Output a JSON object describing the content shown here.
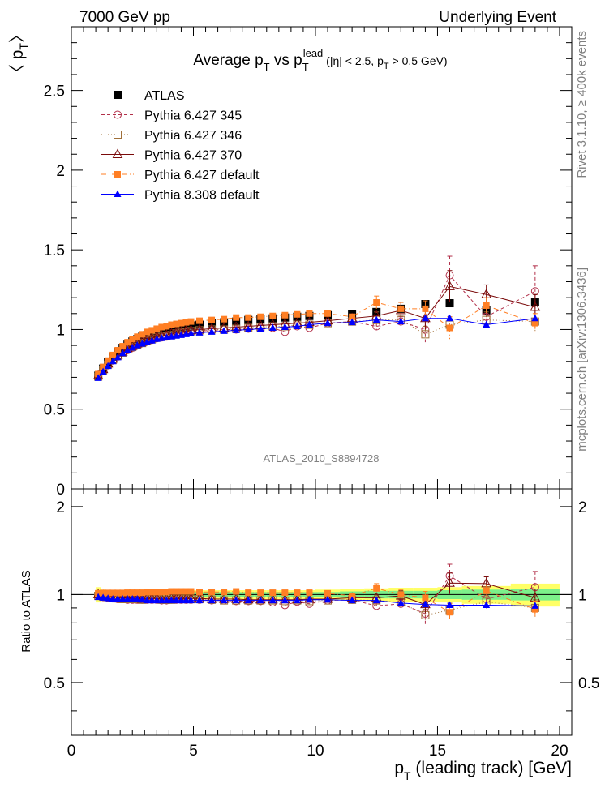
{
  "header": {
    "left": "7000 GeV pp",
    "right": "Underlying Event"
  },
  "side_labels": {
    "rivet": "Rivet 3.1.10, ≥ 400k events",
    "mcplots": "mcplots.cern.ch [arXiv:1306.3436]"
  },
  "watermark": "ATLAS_2010_S8894728",
  "colors": {
    "atlas": "#000000",
    "p345": "#b2304a",
    "p346": "#a0703a",
    "p370": "#7a0a0a",
    "p6def": "#ff7f24",
    "p8def": "#0000ff",
    "band_inner": "#7cf08a",
    "band_outer": "#ffff66"
  },
  "chart_data": [
    {
      "type": "scatter",
      "title": "Average p_T vs p_T^lead (|η| < 2.5, p_T > 0.5 GeV)",
      "title_parts": {
        "a": "Average p",
        "b": "T",
        "c": " vs p",
        "d": "T",
        "e": "lead",
        "f": " (|η| < 2.5, p",
        "g": "T",
        "h": " > 0.5 GeV)"
      },
      "ylabel_parts": {
        "open": "〈 p",
        "sub": "T",
        "close": "〉"
      },
      "xlabel_parts": {
        "main": "p",
        "sub": "T",
        "rest": " (leading track) [GeV]"
      },
      "xlim": [
        0,
        20.5
      ],
      "ylim": [
        0,
        2.9
      ],
      "x_ticks": [
        "0",
        "5",
        "10",
        "15",
        "20"
      ],
      "y_ticks": [
        "0",
        "0.5",
        "1",
        "1.5",
        "2",
        "2.5"
      ],
      "x": [
        1.1,
        1.3,
        1.5,
        1.7,
        1.9,
        2.1,
        2.3,
        2.5,
        2.7,
        2.9,
        3.1,
        3.3,
        3.5,
        3.7,
        3.9,
        4.1,
        4.3,
        4.5,
        4.7,
        4.9,
        5.25,
        5.75,
        6.25,
        6.75,
        7.25,
        7.75,
        8.25,
        8.75,
        9.25,
        9.75,
        10.5,
        11.5,
        12.5,
        13.5,
        14.5,
        15.5,
        17.0,
        19.0
      ],
      "series": [
        {
          "name": "ATLAS",
          "key": "atlas",
          "marker": "square-filled",
          "values": [
            0.71,
            0.755,
            0.795,
            0.83,
            0.86,
            0.885,
            0.905,
            0.925,
            0.94,
            0.955,
            0.965,
            0.975,
            0.985,
            0.995,
            1.0,
            1.005,
            1.01,
            1.015,
            1.02,
            1.025,
            1.03,
            1.04,
            1.045,
            1.05,
            1.06,
            1.065,
            1.07,
            1.075,
            1.08,
            1.085,
            1.09,
            1.095,
            1.11,
            1.13,
            1.16,
            1.165,
            1.12,
            1.17
          ]
        },
        {
          "name": "Pythia 6.427 345",
          "key": "p345",
          "marker": "circle-open",
          "values": [
            0.705,
            0.74,
            0.775,
            0.805,
            0.83,
            0.855,
            0.87,
            0.885,
            0.9,
            0.915,
            0.925,
            0.935,
            0.945,
            0.95,
            0.955,
            0.965,
            0.97,
            0.975,
            0.98,
            0.985,
            0.99,
            0.995,
            1.0,
            1.0,
            1.005,
            1.01,
            1.01,
            0.985,
            1.02,
            1.01,
            1.04,
            1.05,
            1.02,
            1.05,
            1.0,
            1.34,
            1.08,
            1.24
          ]
        },
        {
          "name": "Pythia 6.427 346",
          "key": "p346",
          "marker": "square-open",
          "values": [
            0.705,
            0.745,
            0.78,
            0.81,
            0.835,
            0.855,
            0.875,
            0.89,
            0.905,
            0.915,
            0.93,
            0.94,
            0.95,
            0.955,
            0.96,
            0.965,
            0.975,
            0.98,
            0.985,
            0.99,
            0.995,
            1.0,
            1.0,
            1.005,
            1.01,
            1.015,
            1.02,
            1.02,
            1.03,
            1.03,
            1.04,
            1.05,
            1.06,
            1.06,
            0.97,
            1.03,
            1.06,
            1.05
          ]
        },
        {
          "name": "Pythia 6.427 370",
          "key": "p370",
          "marker": "triangle-open",
          "values": [
            0.71,
            0.75,
            0.785,
            0.815,
            0.84,
            0.86,
            0.88,
            0.895,
            0.91,
            0.92,
            0.935,
            0.945,
            0.955,
            0.96,
            0.965,
            0.975,
            0.98,
            0.985,
            0.99,
            0.995,
            1.0,
            1.005,
            1.01,
            1.015,
            1.02,
            1.025,
            1.03,
            1.035,
            1.04,
            1.045,
            1.055,
            1.07,
            1.085,
            1.12,
            1.07,
            1.27,
            1.22,
            1.14
          ]
        },
        {
          "name": "Pythia 6.427 default",
          "key": "p6def",
          "marker": "square-small",
          "values": [
            0.72,
            0.765,
            0.805,
            0.84,
            0.87,
            0.895,
            0.92,
            0.94,
            0.955,
            0.97,
            0.985,
            0.995,
            1.005,
            1.015,
            1.02,
            1.03,
            1.035,
            1.04,
            1.045,
            1.05,
            1.055,
            1.06,
            1.065,
            1.075,
            1.075,
            1.08,
            1.085,
            1.09,
            1.095,
            1.1,
            1.1,
            1.08,
            1.17,
            1.13,
            1.13,
            1.01,
            1.15,
            1.04
          ]
        },
        {
          "name": "Pythia 8.308 default",
          "key": "p8def",
          "marker": "triangle-filled",
          "values": [
            0.695,
            0.735,
            0.77,
            0.8,
            0.825,
            0.85,
            0.87,
            0.885,
            0.9,
            0.91,
            0.92,
            0.93,
            0.94,
            0.945,
            0.95,
            0.955,
            0.96,
            0.965,
            0.97,
            0.975,
            0.98,
            0.985,
            0.99,
            0.995,
            1.0,
            1.005,
            1.01,
            1.015,
            1.02,
            1.03,
            1.04,
            1.045,
            1.06,
            1.05,
            1.07,
            1.07,
            1.03,
            1.07
          ]
        }
      ],
      "error_bars": {
        "p345": {
          "x": [
            12.5,
            13.5,
            14.5,
            15.5,
            17.0,
            19.0
          ],
          "half": [
            0.02,
            0.03,
            0.08,
            0.12,
            0.06,
            0.16
          ]
        },
        "p346": {
          "x": [
            12.5,
            13.5,
            14.5,
            15.5,
            17.0,
            19.0
          ],
          "half": [
            0.05,
            0.03,
            0.05,
            0.05,
            0.05,
            0.07
          ]
        },
        "p370": {
          "x": [
            13.5,
            14.5,
            15.5,
            17.0,
            19.0
          ],
          "half": [
            0.05,
            0.07,
            0.1,
            0.06,
            0.08
          ]
        },
        "p6def": {
          "x": [
            12.5,
            13.5,
            14.5,
            15.5,
            17.0,
            19.0
          ],
          "half": [
            0.04,
            0.04,
            0.05,
            0.07,
            0.05,
            0.06
          ]
        }
      },
      "legend_position": "top-left"
    },
    {
      "type": "scatter",
      "ylabel": "Ratio to ATLAS",
      "xlim": [
        0,
        20.5
      ],
      "ylim": [
        0.33,
        2.3
      ],
      "y_ticks": [
        "0.5",
        "1",
        "2"
      ],
      "band_x": [
        [
          1.0,
          1.2
        ],
        [
          1.2,
          1.4
        ],
        [
          1.4,
          1.6
        ],
        [
          1.6,
          1.8
        ],
        [
          1.8,
          2.0
        ],
        [
          2.0,
          2.2
        ],
        [
          2.2,
          2.4
        ],
        [
          2.4,
          2.6
        ],
        [
          2.6,
          2.8
        ],
        [
          2.8,
          3.0
        ],
        [
          3.0,
          3.2
        ],
        [
          3.2,
          3.4
        ],
        [
          3.4,
          3.6
        ],
        [
          3.6,
          3.8
        ],
        [
          3.8,
          4.0
        ],
        [
          4.0,
          4.2
        ],
        [
          4.2,
          4.4
        ],
        [
          4.4,
          4.6
        ],
        [
          4.6,
          4.8
        ],
        [
          4.8,
          5.0
        ],
        [
          5.0,
          5.5
        ],
        [
          5.5,
          6.0
        ],
        [
          6.0,
          6.5
        ],
        [
          6.5,
          7.0
        ],
        [
          7.0,
          7.5
        ],
        [
          7.5,
          8.0
        ],
        [
          8.0,
          8.5
        ],
        [
          8.5,
          9.0
        ],
        [
          9.0,
          9.5
        ],
        [
          9.5,
          10.0
        ],
        [
          10.0,
          11.0
        ],
        [
          11.0,
          12.0
        ],
        [
          12.0,
          13.0
        ],
        [
          13.0,
          14.0
        ],
        [
          14.0,
          15.0
        ],
        [
          15.0,
          16.0
        ],
        [
          16.0,
          18.0
        ],
        [
          18.0,
          20.0
        ]
      ],
      "band_inner_half": [
        0.025,
        0.02,
        0.02,
        0.02,
        0.02,
        0.02,
        0.02,
        0.02,
        0.02,
        0.02,
        0.02,
        0.02,
        0.02,
        0.02,
        0.02,
        0.02,
        0.02,
        0.02,
        0.02,
        0.02,
        0.02,
        0.02,
        0.02,
        0.02,
        0.02,
        0.02,
        0.02,
        0.02,
        0.02,
        0.02,
        0.02,
        0.025,
        0.03,
        0.03,
        0.03,
        0.035,
        0.04,
        0.045
      ],
      "band_outer_half": [
        0.06,
        0.04,
        0.035,
        0.035,
        0.035,
        0.035,
        0.035,
        0.035,
        0.035,
        0.035,
        0.035,
        0.035,
        0.035,
        0.035,
        0.035,
        0.035,
        0.035,
        0.035,
        0.035,
        0.035,
        0.035,
        0.035,
        0.035,
        0.035,
        0.035,
        0.035,
        0.035,
        0.035,
        0.035,
        0.035,
        0.04,
        0.045,
        0.05,
        0.055,
        0.055,
        0.06,
        0.07,
        0.09
      ],
      "x": [
        1.1,
        1.3,
        1.5,
        1.7,
        1.9,
        2.1,
        2.3,
        2.5,
        2.7,
        2.9,
        3.1,
        3.3,
        3.5,
        3.7,
        3.9,
        4.1,
        4.3,
        4.5,
        4.7,
        4.9,
        5.25,
        5.75,
        6.25,
        6.75,
        7.25,
        7.75,
        8.25,
        8.75,
        9.25,
        9.75,
        10.5,
        11.5,
        12.5,
        13.5,
        14.5,
        15.5,
        17.0,
        19.0
      ],
      "series": [
        {
          "name": "Pythia 6.427 345",
          "key": "p345",
          "marker": "circle-open",
          "values": [
            0.99,
            0.98,
            0.975,
            0.97,
            0.965,
            0.965,
            0.96,
            0.96,
            0.96,
            0.96,
            0.96,
            0.96,
            0.96,
            0.955,
            0.955,
            0.96,
            0.96,
            0.96,
            0.96,
            0.96,
            0.96,
            0.955,
            0.955,
            0.95,
            0.95,
            0.95,
            0.94,
            0.92,
            0.945,
            0.93,
            0.955,
            0.96,
            0.915,
            0.93,
            0.86,
            1.16,
            0.965,
            1.06
          ]
        },
        {
          "name": "Pythia 6.427 346",
          "key": "p346",
          "marker": "square-open",
          "values": [
            0.99,
            0.985,
            0.98,
            0.975,
            0.97,
            0.965,
            0.965,
            0.965,
            0.965,
            0.96,
            0.965,
            0.965,
            0.965,
            0.96,
            0.96,
            0.96,
            0.965,
            0.965,
            0.965,
            0.965,
            0.965,
            0.96,
            0.955,
            0.955,
            0.955,
            0.955,
            0.955,
            0.95,
            0.955,
            0.95,
            0.955,
            0.96,
            0.955,
            0.94,
            0.85,
            0.885,
            0.945,
            0.9
          ]
        },
        {
          "name": "Pythia 6.427 370",
          "key": "p370",
          "marker": "triangle-open",
          "values": [
            1.0,
            0.995,
            0.99,
            0.985,
            0.98,
            0.975,
            0.975,
            0.97,
            0.97,
            0.965,
            0.97,
            0.97,
            0.97,
            0.965,
            0.965,
            0.97,
            0.97,
            0.97,
            0.97,
            0.97,
            0.97,
            0.965,
            0.965,
            0.965,
            0.96,
            0.96,
            0.96,
            0.96,
            0.96,
            0.965,
            0.965,
            0.975,
            0.975,
            0.99,
            0.925,
            1.095,
            1.09,
            0.975
          ]
        },
        {
          "name": "Pythia 6.427 default",
          "key": "p6def",
          "marker": "square-small",
          "values": [
            1.01,
            1.013,
            1.013,
            1.013,
            1.013,
            1.013,
            1.015,
            1.015,
            1.015,
            1.015,
            1.02,
            1.02,
            1.02,
            1.02,
            1.02,
            1.025,
            1.025,
            1.025,
            1.025,
            1.025,
            1.02,
            1.02,
            1.02,
            1.025,
            1.015,
            1.015,
            1.015,
            1.015,
            1.015,
            1.015,
            1.01,
            0.99,
            1.05,
            1.0,
            0.975,
            0.87,
            1.03,
            0.89
          ]
        },
        {
          "name": "Pythia 8.308 default",
          "key": "p8def",
          "marker": "triangle-filled",
          "values": [
            0.98,
            0.975,
            0.97,
            0.965,
            0.965,
            0.965,
            0.965,
            0.965,
            0.965,
            0.96,
            0.955,
            0.955,
            0.955,
            0.955,
            0.955,
            0.955,
            0.955,
            0.955,
            0.955,
            0.955,
            0.955,
            0.955,
            0.955,
            0.955,
            0.955,
            0.955,
            0.955,
            0.955,
            0.955,
            0.96,
            0.96,
            0.955,
            0.955,
            0.935,
            0.925,
            0.92,
            0.92,
            0.915
          ]
        }
      ],
      "error_bars": {
        "p345": {
          "x": [
            12.5,
            13.5,
            14.5,
            15.5,
            17.0,
            19.0
          ],
          "half": [
            0.02,
            0.03,
            0.07,
            0.11,
            0.05,
            0.14
          ]
        },
        "p346": {
          "x": [
            12.5,
            13.5,
            14.5,
            15.5,
            17.0,
            19.0
          ],
          "half": [
            0.04,
            0.03,
            0.04,
            0.05,
            0.05,
            0.06
          ]
        },
        "p370": {
          "x": [
            13.5,
            14.5,
            15.5,
            17.0,
            19.0
          ],
          "half": [
            0.04,
            0.06,
            0.09,
            0.06,
            0.07
          ]
        },
        "p6def": {
          "x": [
            12.5,
            13.5,
            14.5,
            15.5,
            17.0,
            19.0
          ],
          "half": [
            0.04,
            0.04,
            0.05,
            0.06,
            0.05,
            0.06
          ]
        }
      }
    }
  ]
}
